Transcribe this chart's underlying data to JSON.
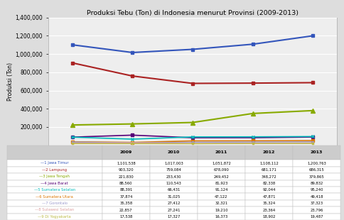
{
  "title": "Produksi Tebu (Ton) di Indonesia menurut Provinsi (2009-2013)",
  "ylabel": "Produksi (Ton)",
  "years": [
    2009,
    2010,
    2011,
    2012,
    2013
  ],
  "series": [
    {
      "label": "1 Jawa Timur",
      "values": [
        1101538,
        1017003,
        1051872,
        1108112,
        1200763
      ],
      "color": "#3355BB",
      "marker": "s",
      "markersize": 3.5,
      "linewidth": 1.5
    },
    {
      "label": "2 Lampung",
      "values": [
        903320,
        759084,
        678090,
        681171,
        686315
      ],
      "color": "#AA2222",
      "marker": "s",
      "markersize": 3.5,
      "linewidth": 1.5
    },
    {
      "label": "3 Jawa Tengah",
      "values": [
        221830,
        233430,
        249452,
        348272,
        379865
      ],
      "color": "#88AA00",
      "marker": "^",
      "markersize": 4.0,
      "linewidth": 1.5
    },
    {
      "label": "4 Jawa Barat",
      "values": [
        88560,
        110543,
        81923,
        82338,
        89832
      ],
      "color": "#550077",
      "marker": "s",
      "markersize": 2.5,
      "linewidth": 1.2
    },
    {
      "label": "5 Sumatera Selatan",
      "values": [
        88391,
        66431,
        91124,
        92044,
        95240
      ],
      "color": "#00BBBB",
      "marker": "x",
      "markersize": 3.0,
      "linewidth": 1.2
    },
    {
      "label": "6 Sumatera Utara",
      "values": [
        37874,
        31025,
        47122,
        47871,
        49418
      ],
      "color": "#DD7700",
      "marker": "s",
      "markersize": 2.5,
      "linewidth": 1.2
    },
    {
      "label": "7 Gorontalo",
      "values": [
        35358,
        27412,
        32321,
        35324,
        37323
      ],
      "color": "#9999CC",
      "marker": "s",
      "markersize": 2.0,
      "linewidth": 1.0
    },
    {
      "label": "8 Sulawesi Selatan",
      "values": [
        22857,
        27241,
        19210,
        23364,
        23796
      ],
      "color": "#DDA0A0",
      "marker": "s",
      "markersize": 2.0,
      "linewidth": 1.0
    },
    {
      "label": "9 Di Yogyakarta",
      "values": [
        17538,
        17327,
        16373,
        18902,
        19487
      ],
      "color": "#BBBB44",
      "marker": "s",
      "markersize": 2.0,
      "linewidth": 1.0
    }
  ],
  "ylim": [
    0,
    1400000
  ],
  "yticks": [
    200000,
    400000,
    600000,
    800000,
    1000000,
    1200000,
    1400000
  ],
  "ytick_labels": [
    "200,000",
    "400,000",
    "600,000",
    "800,000",
    "1,000,000",
    "1,200,000",
    "1,400,000"
  ],
  "fig_bg": "#DDDDDD",
  "plot_bg": "#EEEEEE",
  "table_header_bg": "#CCCCCC",
  "table_row_bg": "#FFFFFF",
  "table_alt_bg": "#F0F0F0"
}
